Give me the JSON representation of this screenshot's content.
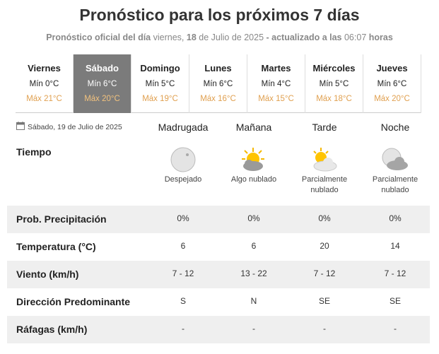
{
  "header": {
    "title": "Pronóstico para los próximos 7 días",
    "subtitle": [
      "Pronóstico oficial del día",
      "viernes,",
      "18",
      "de Julio de 2025",
      "- actualizado a las",
      "06:07",
      "horas"
    ]
  },
  "days": [
    {
      "name": "Viernes",
      "min": "Mín 0°C",
      "max": "Máx 21°C"
    },
    {
      "name": "Sábado",
      "min": "Mín 6°C",
      "max": "Máx 20°C"
    },
    {
      "name": "Domingo",
      "min": "Mín 5°C",
      "max": "Máx 19°C"
    },
    {
      "name": "Lunes",
      "min": "Mín 6°C",
      "max": "Máx 16°C"
    },
    {
      "name": "Martes",
      "min": "Mín 4°C",
      "max": "Máx 15°C"
    },
    {
      "name": "Miércoles",
      "min": "Mín 5°C",
      "max": "Máx 18°C"
    },
    {
      "name": "Jueves",
      "min": "Mín 6°C",
      "max": "Máx 20°C"
    }
  ],
  "selected_day": 1,
  "detail": {
    "date": "Sábado, 19 de Julio de 2025",
    "periods": [
      "Madrugada",
      "Mañana",
      "Tarde",
      "Noche"
    ],
    "weather_label": "Tiempo",
    "weather": [
      "Despejado",
      "Algo nublado",
      "Parcialmente nublado",
      "Parcialmente nublado"
    ],
    "rows": [
      {
        "label": "Prob. Precipitación",
        "values": [
          "0%",
          "0%",
          "0%",
          "0%"
        ]
      },
      {
        "label": "Temperatura (°C)",
        "values": [
          "6",
          "6",
          "20",
          "14"
        ]
      },
      {
        "label": "Viento (km/h)",
        "values": [
          "7 - 12",
          "13 - 22",
          "7 - 12",
          "7 - 12"
        ]
      },
      {
        "label": "Dirección Predominante",
        "values": [
          "S",
          "N",
          "SE",
          "SE"
        ]
      },
      {
        "label": "Ráfagas (km/h)",
        "values": [
          "-",
          "-",
          "-",
          "-"
        ]
      }
    ]
  }
}
